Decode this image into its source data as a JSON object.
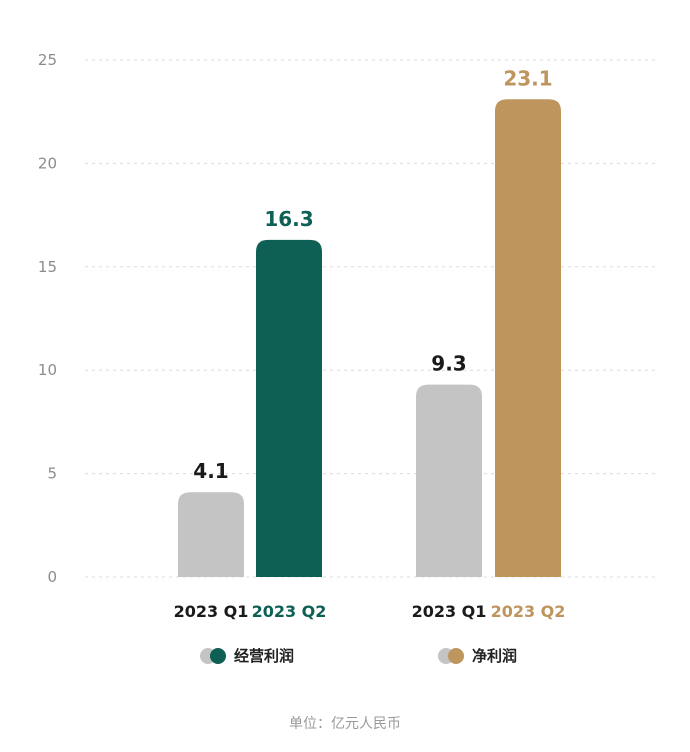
{
  "chart_data": {
    "type": "bar",
    "ylim": [
      0,
      25
    ],
    "yticks": [
      0,
      5,
      10,
      15,
      20,
      25
    ],
    "grid": true,
    "groups": [
      {
        "name": "经营利润",
        "color": "#0e5f54",
        "bars": [
          {
            "category": "2023 Q1",
            "value": 4.1,
            "label": "4.1",
            "color": "#c4c4c4",
            "label_color": "#1a1a1a",
            "category_color": "#1a1a1a"
          },
          {
            "category": "2023 Q2",
            "value": 16.3,
            "label": "16.3",
            "color": "#0e5f54",
            "label_color": "#0e5f54",
            "category_color": "#0e5f54"
          }
        ]
      },
      {
        "name": "净利润",
        "color": "#bf955e",
        "bars": [
          {
            "category": "2023 Q1",
            "value": 9.3,
            "label": "9.3",
            "color": "#c4c4c4",
            "label_color": "#1a1a1a",
            "category_color": "#1a1a1a"
          },
          {
            "category": "2023 Q2",
            "value": 23.1,
            "label": "23.1",
            "color": "#bf955e",
            "label_color": "#bf955e",
            "category_color": "#bf955e"
          }
        ]
      }
    ],
    "legend": [
      {
        "label": "经营利润",
        "color_a": "#c4c4c4",
        "color_b": "#0e5f54"
      },
      {
        "label": "净利润",
        "color_a": "#c4c4c4",
        "color_b": "#bf955e"
      }
    ],
    "legend_placement": "bottom",
    "unit": "单位：亿元人民币"
  }
}
